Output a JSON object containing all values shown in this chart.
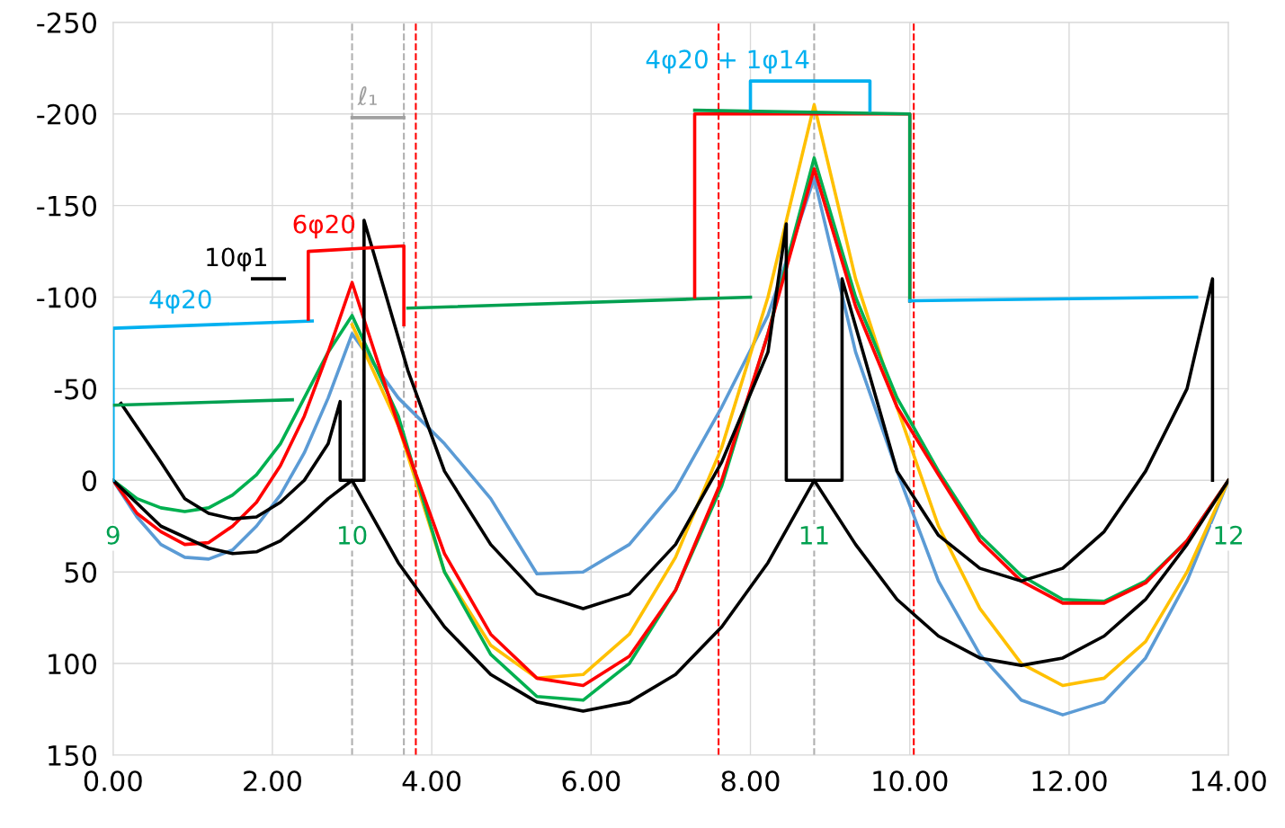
{
  "chart_data": {
    "type": "line",
    "xlim": [
      0,
      14
    ],
    "ylim": [
      150,
      -250
    ],
    "xticks": [
      {
        "value": 0,
        "label": "0.00"
      },
      {
        "value": 2,
        "label": "2.00"
      },
      {
        "value": 4,
        "label": "4.00"
      },
      {
        "value": 6,
        "label": "6.00"
      },
      {
        "value": 8,
        "label": "8.00"
      },
      {
        "value": 10,
        "label": "10.00"
      },
      {
        "value": 12,
        "label": "12.00"
      },
      {
        "value": 14,
        "label": "14.00"
      }
    ],
    "yticks": [
      -250,
      -200,
      -150,
      -100,
      -50,
      0,
      50,
      100,
      150
    ],
    "grid": true,
    "marker": "none",
    "line_style": "solid",
    "series": [
      {
        "color": "#5b9bd5",
        "x": [
          0,
          0.3,
          0.6,
          0.9,
          1.2,
          1.5,
          1.8,
          2.1,
          2.4,
          2.7,
          3.0,
          3.58,
          4.16,
          4.74,
          5.32,
          5.9,
          6.48,
          7.06,
          7.64,
          8.22,
          8.8,
          9.32,
          9.84,
          10.36,
          10.88,
          11.4,
          11.92,
          12.44,
          12.96,
          13.48,
          14
        ],
        "values": [
          0,
          20,
          35,
          42,
          43,
          38,
          25,
          8,
          -15,
          -45,
          -80,
          -45,
          -20,
          10,
          51,
          50,
          35,
          5,
          -40,
          -90,
          -165,
          -70,
          -5,
          55,
          95,
          120,
          128,
          121,
          97,
          55,
          0
        ]
      },
      {
        "color": "#ffc000",
        "x": [
          3.0,
          3.58,
          4.16,
          4.74,
          5.32,
          5.9,
          6.48,
          7.06,
          7.64,
          8.22,
          8.8,
          9.32,
          9.84,
          10.36,
          10.88,
          11.4,
          11.92,
          12.44,
          12.96,
          13.48,
          14
        ],
        "values": [
          -85,
          -30,
          50,
          90,
          108,
          106,
          84,
          42,
          -18,
          -100,
          -205,
          -110,
          -40,
          25,
          70,
          100,
          112,
          108,
          88,
          50,
          0
        ]
      },
      {
        "color": "#00b050",
        "x": [
          0,
          0.3,
          0.6,
          0.9,
          1.2,
          1.5,
          1.8,
          2.1,
          2.4,
          2.7,
          3.0,
          3.58,
          4.16,
          4.74,
          5.32,
          5.9,
          6.48,
          7.06,
          7.64,
          8.22,
          8.8,
          9.32,
          9.84,
          10.36,
          10.88,
          11.4,
          11.92,
          12.44,
          12.96,
          13.48,
          14
        ],
        "values": [
          0,
          10,
          15,
          17,
          15,
          8,
          -3,
          -20,
          -45,
          -70,
          -90,
          -35,
          50,
          95,
          118,
          120,
          100,
          60,
          3,
          -80,
          -176,
          -100,
          -45,
          -5,
          30,
          52,
          65,
          66,
          55,
          33,
          0
        ]
      },
      {
        "color": "#ff0000",
        "x": [
          0,
          0.3,
          0.6,
          0.9,
          1.2,
          1.5,
          1.8,
          2.1,
          2.4,
          2.7,
          3.0,
          3.58,
          4.16,
          4.74,
          5.32,
          5.9,
          6.48,
          7.06,
          7.64,
          8.22,
          8.8,
          9.32,
          9.84,
          10.36,
          10.88,
          11.4,
          11.92,
          12.44,
          12.96,
          13.48,
          14
        ],
        "values": [
          0,
          18,
          28,
          35,
          34,
          25,
          12,
          -8,
          -35,
          -70,
          -108,
          -30,
          40,
          84,
          108,
          112,
          96,
          60,
          0,
          -80,
          -170,
          -95,
          -40,
          -3,
          33,
          55,
          67,
          67,
          56,
          33,
          0
        ]
      },
      {
        "color": "#000000",
        "x": [
          0,
          0.6,
          1.2,
          1.5,
          1.8,
          2.1,
          2.4,
          2.7,
          3.0,
          3.58,
          4.16,
          4.74,
          5.32,
          5.9,
          6.48,
          7.06,
          7.64,
          8.22,
          8.8,
          9.32,
          9.84,
          10.36,
          10.88,
          11.4,
          11.92,
          12.44,
          12.96,
          13.48,
          14
        ],
        "values": [
          0,
          25,
          37,
          40,
          39,
          33,
          22,
          10,
          0,
          45,
          80,
          106,
          121,
          126,
          121,
          106,
          80,
          45,
          0,
          35,
          65,
          85,
          97,
          101,
          97,
          85,
          65,
          35,
          0
        ]
      },
      {
        "color": "#000000",
        "x": [
          0.1,
          0.6,
          0.9,
          1.2,
          1.5,
          1.8,
          2.1,
          2.4,
          2.7,
          2.85,
          2.85,
          3.15,
          3.15,
          3.7,
          4.16,
          4.74,
          5.32,
          5.9,
          6.48,
          7.06,
          7.64,
          8.22,
          8.45,
          8.45,
          9.15,
          9.15,
          9.84,
          10.36,
          10.88,
          11.4,
          11.92,
          12.44,
          12.96,
          13.48,
          13.8,
          13.8
        ],
        "values": [
          -42,
          -10,
          10,
          18,
          21,
          20,
          12,
          0,
          -20,
          -43,
          0,
          0,
          -142,
          -60,
          -5,
          35,
          62,
          70,
          62,
          35,
          -10,
          -70,
          -140,
          0,
          0,
          -110,
          -5,
          30,
          48,
          55,
          48,
          28,
          -5,
          -50,
          -110,
          0
        ]
      },
      {
        "color": "#00b0f0",
        "name": "4φ20",
        "x": [
          0,
          0,
          2.5
        ],
        "values": [
          0,
          -83,
          -87
        ]
      },
      {
        "color": "#000000",
        "name": "10φ1",
        "x": [
          1.75,
          2.15
        ],
        "values": [
          -110,
          -110
        ]
      },
      {
        "color": "#a0a0a0",
        "name": "ℓ₁",
        "x": [
          3.0,
          3.65
        ],
        "values": [
          -198,
          -198
        ]
      },
      {
        "color": "#00a050",
        "x": [
          0,
          2.25
        ],
        "values": [
          -41,
          -44
        ]
      },
      {
        "color": "#ff0000",
        "name": "6φ20",
        "x": [
          2.45,
          2.45,
          3.65,
          3.65
        ],
        "values": [
          -88,
          -125,
          -128,
          -85
        ]
      },
      {
        "color": "#00a050",
        "x": [
          3.7,
          7.3,
          8.0
        ],
        "values": [
          -94,
          -99,
          -100
        ]
      },
      {
        "color": "#ff0000",
        "x": [
          7.3,
          7.3,
          10.0,
          10.0
        ],
        "values": [
          -100,
          -200,
          -200,
          -98
        ]
      },
      {
        "color": "#00a050",
        "x": [
          7.3,
          10.0,
          10.0
        ],
        "values": [
          -202,
          -200,
          -98
        ]
      },
      {
        "color": "#00b0f0",
        "name": "4φ20 + 1φ14",
        "x": [
          8.0,
          8.0,
          9.5,
          9.5
        ],
        "values": [
          -203,
          -218,
          -218,
          -202
        ]
      },
      {
        "color": "#00b0f0",
        "x": [
          10.0,
          13.6
        ],
        "values": [
          -98,
          -100
        ]
      }
    ],
    "ref_lines": [
      {
        "axis": "x",
        "value": 3.0,
        "color": "#b0b0b0",
        "line_style": "dashed"
      },
      {
        "axis": "x",
        "value": 3.65,
        "color": "#b0b0b0",
        "line_style": "dashed"
      },
      {
        "axis": "x",
        "value": 8.8,
        "color": "#b0b0b0",
        "line_style": "dashed"
      },
      {
        "axis": "x",
        "value": 3.8,
        "color": "#ff0000",
        "line_style": "dashed"
      },
      {
        "axis": "x",
        "value": 7.6,
        "color": "#ff0000",
        "line_style": "dashed"
      },
      {
        "axis": "x",
        "value": 10.05,
        "color": "#ff0000",
        "line_style": "dashed"
      }
    ],
    "annotations": [
      {
        "text": "9",
        "x": 0,
        "y": 0
      },
      {
        "text": "10",
        "x": 3.0,
        "y": 0
      },
      {
        "text": "11",
        "x": 8.8,
        "y": 0
      },
      {
        "text": "12",
        "x": 14,
        "y": 0
      }
    ]
  }
}
